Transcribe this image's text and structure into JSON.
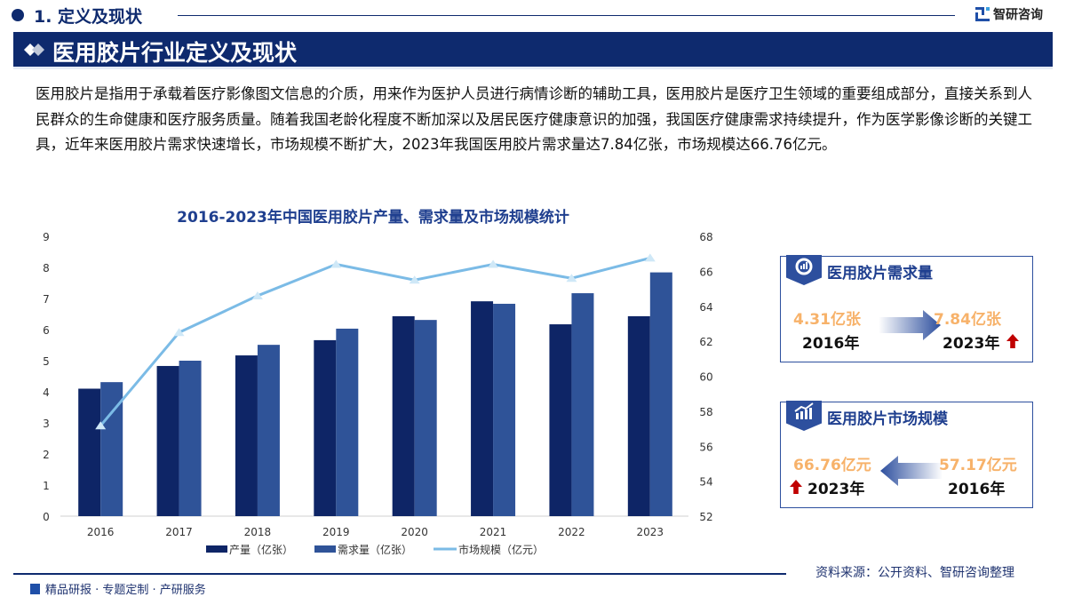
{
  "header": {
    "section_title": "1. 定义及现状",
    "logo_text": "智研咨询"
  },
  "banner": {
    "title": "医用胶片行业定义及现状"
  },
  "paragraph": "医用胶片是指用于承载着医疗影像图文信息的介质，用来作为医护人员进行病情诊断的辅助工具，医用胶片是医疗卫生领域的重要组成部分，直接关系到人民群众的生命健康和医疗服务质量。随着我国老龄化程度不断加深以及居民医疗健康意识的加强，我国医疗健康需求持续提升，作为医学影像诊断的关键工具，近年来医用胶片需求快速增长，市场规模不断扩大，2023年我国医用胶片需求量达7.84亿张，市场规模达66.76亿元。",
  "chart_data": {
    "type": "bar+line",
    "title": "2016-2023年中国医用胶片产量、需求量及市场规模统计",
    "categories": [
      "2016",
      "2017",
      "2018",
      "2019",
      "2020",
      "2021",
      "2022",
      "2023"
    ],
    "series": [
      {
        "name": "产量（亿张）",
        "type": "bar",
        "axis": "left",
        "color": "#0e2566",
        "values": [
          4.1,
          4.83,
          5.17,
          5.66,
          6.43,
          6.91,
          6.17,
          6.43
        ]
      },
      {
        "name": "需求量（亿张）",
        "type": "bar",
        "axis": "left",
        "color": "#2f5398",
        "values": [
          4.31,
          5.0,
          5.51,
          6.03,
          6.31,
          6.83,
          7.17,
          7.84
        ]
      },
      {
        "name": "市场规模（亿元）",
        "type": "line",
        "axis": "right",
        "color": "#7bbbe6",
        "marker": "triangle",
        "values": [
          57.17,
          62.5,
          64.6,
          66.4,
          65.5,
          66.4,
          65.6,
          66.76
        ]
      }
    ],
    "left_axis": {
      "ylim": [
        0,
        9
      ],
      "ticks": [
        "0",
        "1",
        "2",
        "3",
        "4",
        "5",
        "6",
        "7",
        "8",
        "9"
      ]
    },
    "right_axis": {
      "ylim": [
        52,
        68
      ],
      "ticks": [
        "52",
        "54",
        "56",
        "58",
        "60",
        "62",
        "64",
        "66",
        "68"
      ]
    },
    "grid": false,
    "legend": "bottom"
  },
  "cards": [
    {
      "title": "医用胶片需求量",
      "icon": "pie-chart-icon",
      "from_value": "4.31亿张",
      "from_year": "2016年",
      "to_value": "7.84亿张",
      "to_year": "2023年"
    },
    {
      "title": "医用胶片市场规模",
      "icon": "growth-chart-icon",
      "from_value": "57.17亿元",
      "from_year": "2016年",
      "to_value": "66.76亿元",
      "to_year": "2023年"
    }
  ],
  "footer": {
    "source": "资料来源：公开资料、智研咨询整理",
    "tagline": "精品研报 · 专题定制 · 产研服务"
  },
  "colors": {
    "navy": "#0e2a6e",
    "accent": "#2d4f9e",
    "value_orange": "#f7b26a",
    "up_red": "#c00000"
  }
}
